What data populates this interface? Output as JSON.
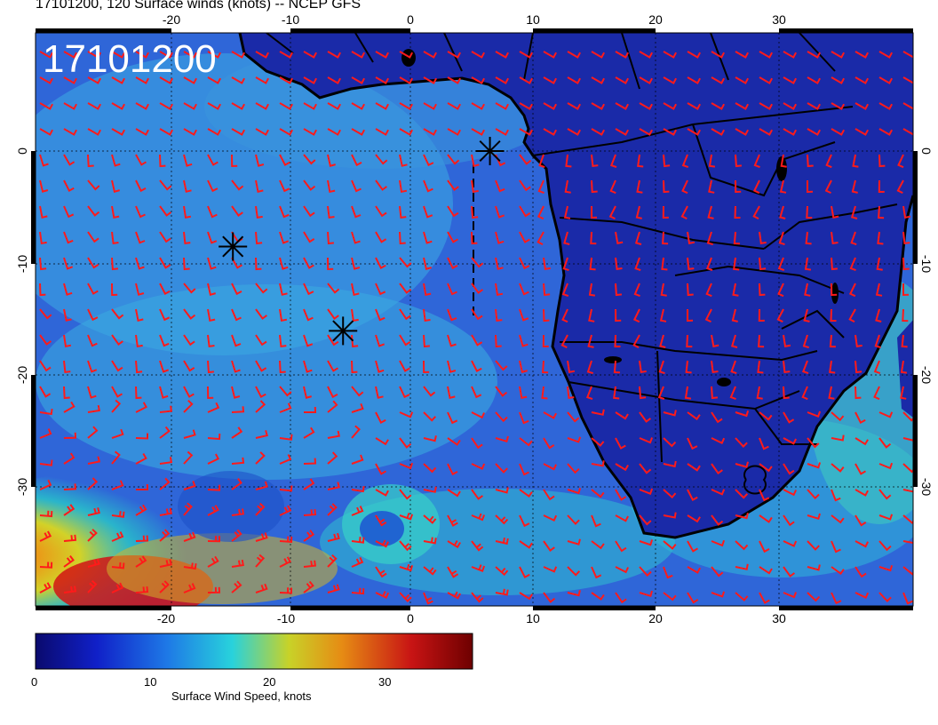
{
  "title": "17101200, 120 Surface winds (knots) -- NCEP GFS",
  "stamp": "17101200",
  "axes": {
    "lon_ticks": [
      "-20",
      "-10",
      "0",
      "10",
      "20",
      "30"
    ],
    "lat_ticks": [
      "0",
      "-10",
      "-20",
      "-30"
    ]
  },
  "colorbar": {
    "title": "Surface Wind Speed, knots",
    "ticks": [
      "0",
      "10",
      "20",
      "30"
    ],
    "range": [
      0,
      37
    ],
    "colors": [
      "#0a0a6e",
      "#1020c8",
      "#1e78e6",
      "#28d2dc",
      "#c8d228",
      "#e68c14",
      "#c81414",
      "#6e0000"
    ]
  },
  "map_colors": {
    "land": "#1a2aa8",
    "ocean": "#2f66d8",
    "barb": "#ff1a1a",
    "coast": "#000000"
  },
  "markers": [
    {
      "name": "storm-marker-1",
      "lon": -14.5,
      "lat": -8.5
    },
    {
      "name": "storm-marker-2",
      "lon": -5.5,
      "lat": -16
    },
    {
      "name": "storm-marker-3",
      "lon": 6.5,
      "lat": 0
    }
  ]
}
